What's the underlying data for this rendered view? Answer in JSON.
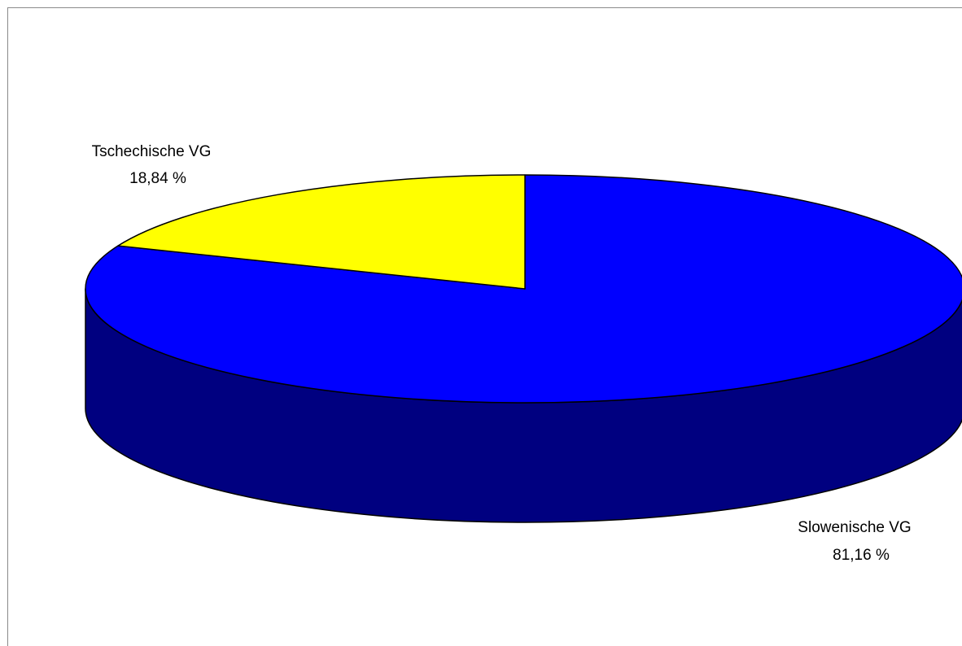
{
  "chart_data": {
    "type": "pie",
    "three_d": true,
    "title": "",
    "legend": "none",
    "slices": [
      {
        "label": "Slowenische VG",
        "value": 81.16,
        "value_label": "81,16 %",
        "color": "#0000ff",
        "side_color": "#000080"
      },
      {
        "label": "Tschechische VG",
        "value": 18.84,
        "value_label": "18,84 %",
        "color": "#ffff00",
        "side_color": "#808000"
      }
    ]
  }
}
